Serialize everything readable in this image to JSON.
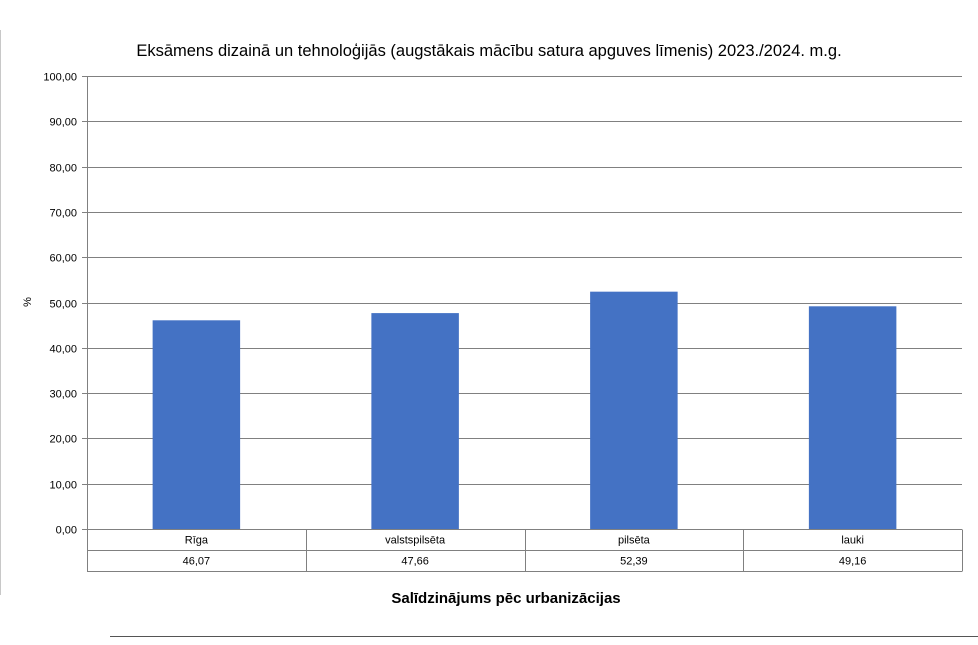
{
  "chart_data": {
    "type": "bar",
    "title": "Eksāmens dizainā un tehnoloģijās (augstākais mācību satura apguves līmenis) 2023./2024. m.g.",
    "xlabel": "Salīdzinājums pēc urbanizācijas",
    "ylabel": "%",
    "categories": [
      "Rīga",
      "valstspilsēta",
      "pilsēta",
      "lauki"
    ],
    "values": [
      46.07,
      47.66,
      52.39,
      49.16
    ],
    "value_labels": [
      "46,07",
      "47,66",
      "52,39",
      "49,16"
    ],
    "ylim": [
      0,
      100
    ],
    "yticks": [
      0,
      10,
      20,
      30,
      40,
      50,
      60,
      70,
      80,
      90,
      100
    ],
    "ytick_labels": [
      "0,00",
      "10,00",
      "20,00",
      "30,00",
      "40,00",
      "50,00",
      "60,00",
      "70,00",
      "80,00",
      "90,00",
      "100,00"
    ],
    "grid": true,
    "data_table": true,
    "bar_color": "#4472C4",
    "grid_color": "#808080"
  }
}
